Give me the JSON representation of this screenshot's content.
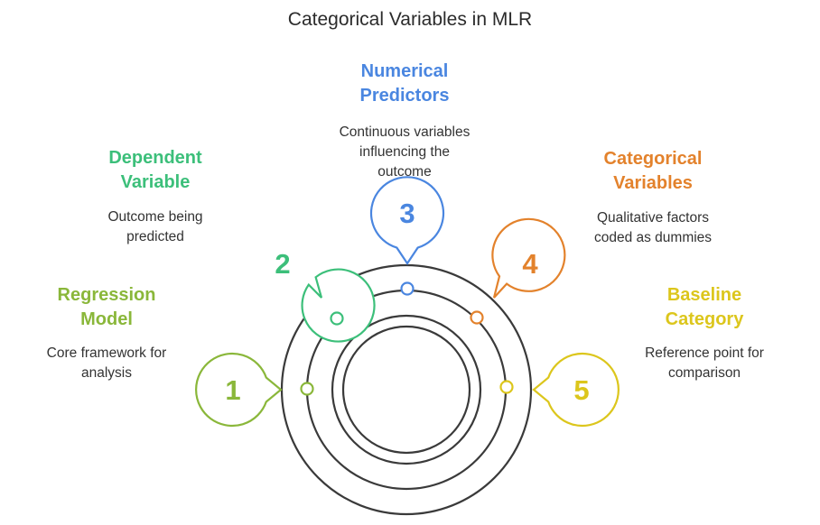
{
  "title": "Categorical Variables in MLR",
  "colors": {
    "ring": "#3a3a3a",
    "step1": "#8ab73a",
    "step2": "#3cbf7a",
    "step3": "#4a86e0",
    "step4": "#e3822c",
    "step5": "#dcc61c"
  },
  "steps": [
    {
      "number": "1",
      "heading_line1": "Regression",
      "heading_line2": "Model",
      "desc_line1": "Core framework for",
      "desc_line2": "analysis",
      "desc_line3": ""
    },
    {
      "number": "2",
      "heading_line1": "Dependent",
      "heading_line2": "Variable",
      "desc_line1": "Outcome being",
      "desc_line2": "predicted",
      "desc_line3": ""
    },
    {
      "number": "3",
      "heading_line1": "Numerical",
      "heading_line2": "Predictors",
      "desc_line1": "Continuous variables",
      "desc_line2": "influencing the",
      "desc_line3": "outcome"
    },
    {
      "number": "4",
      "heading_line1": "Categorical",
      "heading_line2": "Variables",
      "desc_line1": "Qualitative factors",
      "desc_line2": "coded as dummies",
      "desc_line3": ""
    },
    {
      "number": "5",
      "heading_line1": "Baseline",
      "heading_line2": "Category",
      "desc_line1": "Reference point for",
      "desc_line2": "comparison",
      "desc_line3": ""
    }
  ]
}
